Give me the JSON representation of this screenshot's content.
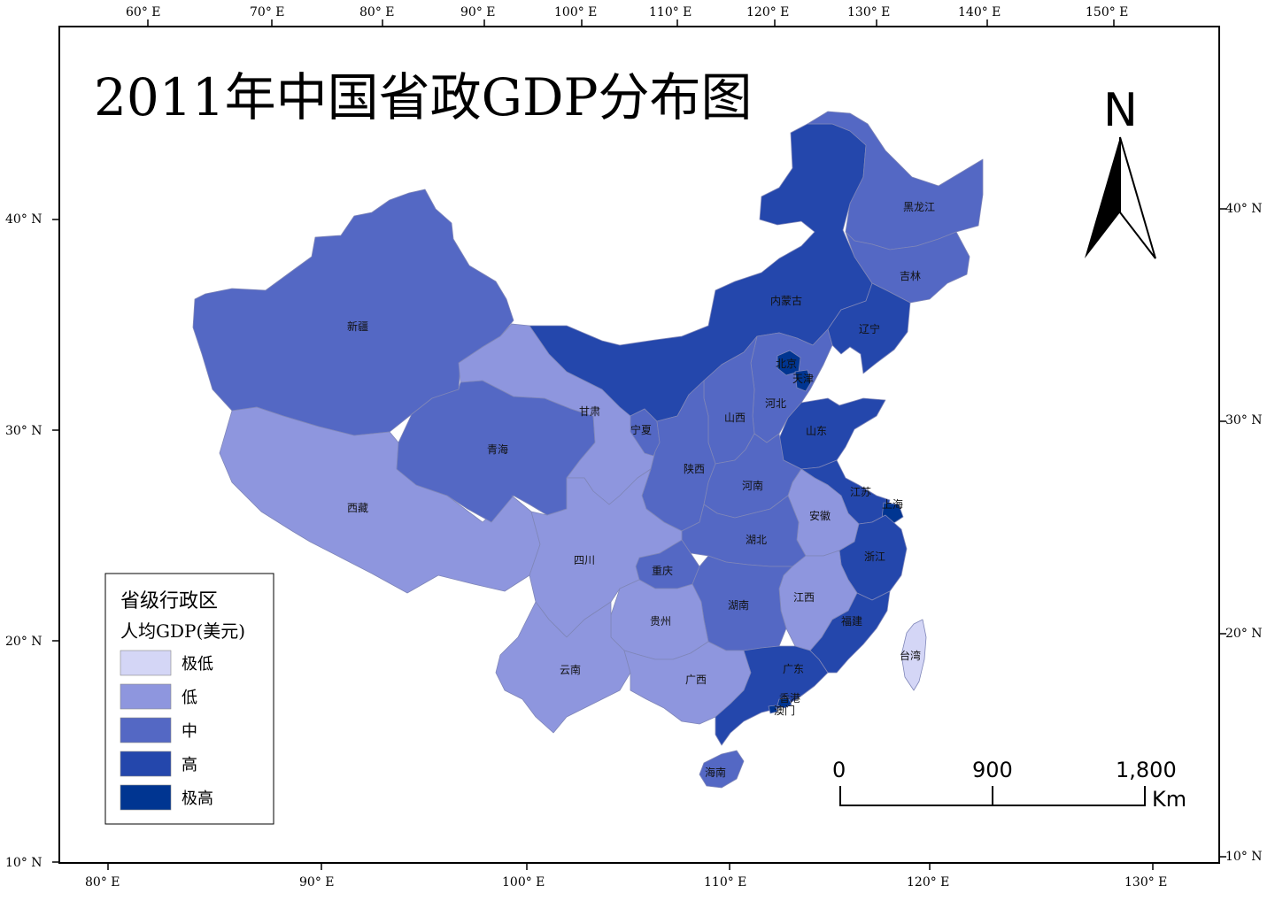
{
  "title": "2011年中国省政GDP分布图",
  "top_axis_labels": [
    "60° E",
    "70° E",
    "80° E",
    "90° E",
    "100° E",
    "110° E",
    "120° E",
    "130° E",
    "140° E",
    "150° E"
  ],
  "bottom_axis_labels": [
    "80° E",
    "90° E",
    "100° E",
    "110° E",
    "120° E",
    "130° E"
  ],
  "left_axis_labels": [
    "40° N",
    "30° N",
    "20° N",
    "10° N"
  ],
  "right_axis_labels": [
    "40° N",
    "30° N",
    "20° N",
    "10° N"
  ],
  "legend": {
    "title": "省级行政区",
    "subtitle": "人均GDP(美元)",
    "classes": [
      {
        "label": "极低",
        "color": "#d4d6f6"
      },
      {
        "label": "低",
        "color": "#8e96de"
      },
      {
        "label": "中",
        "color": "#5468c4"
      },
      {
        "label": "高",
        "color": "#2447ac"
      },
      {
        "label": "极高",
        "color": "#003591"
      }
    ]
  },
  "provinces": [
    {
      "name": "新疆",
      "level": 2
    },
    {
      "name": "西藏",
      "level": 1
    },
    {
      "name": "青海",
      "level": 2
    },
    {
      "name": "甘肃",
      "level": 1
    },
    {
      "name": "内蒙古",
      "level": 3
    },
    {
      "name": "黑龙江",
      "level": 2
    },
    {
      "name": "吉林",
      "level": 2
    },
    {
      "name": "辽宁",
      "level": 3
    },
    {
      "name": "北京",
      "level": 4
    },
    {
      "name": "天津",
      "level": 4
    },
    {
      "name": "河北",
      "level": 2
    },
    {
      "name": "山西",
      "level": 2
    },
    {
      "name": "宁夏",
      "level": 2
    },
    {
      "name": "陕西",
      "level": 2
    },
    {
      "name": "山东",
      "level": 3
    },
    {
      "name": "河南",
      "level": 2
    },
    {
      "name": "江苏",
      "level": 3
    },
    {
      "name": "上海",
      "level": 4
    },
    {
      "name": "安徽",
      "level": 1
    },
    {
      "name": "湖北",
      "level": 2
    },
    {
      "name": "四川",
      "level": 1
    },
    {
      "name": "重庆",
      "level": 2
    },
    {
      "name": "浙江",
      "level": 3
    },
    {
      "name": "江西",
      "level": 1
    },
    {
      "name": "湖南",
      "level": 2
    },
    {
      "name": "贵州",
      "level": 1
    },
    {
      "name": "云南",
      "level": 1
    },
    {
      "name": "福建",
      "level": 3
    },
    {
      "name": "台湾",
      "level": 0
    },
    {
      "name": "广西",
      "level": 1
    },
    {
      "name": "广东",
      "level": 3
    },
    {
      "name": "香港",
      "level": 4
    },
    {
      "name": "澳门",
      "level": 4
    },
    {
      "name": "海南",
      "level": 2
    }
  ],
  "scale_bar": {
    "labels": [
      "0",
      "900",
      "1,800"
    ],
    "unit": "Km"
  },
  "north_arrow": {
    "label": "N"
  }
}
